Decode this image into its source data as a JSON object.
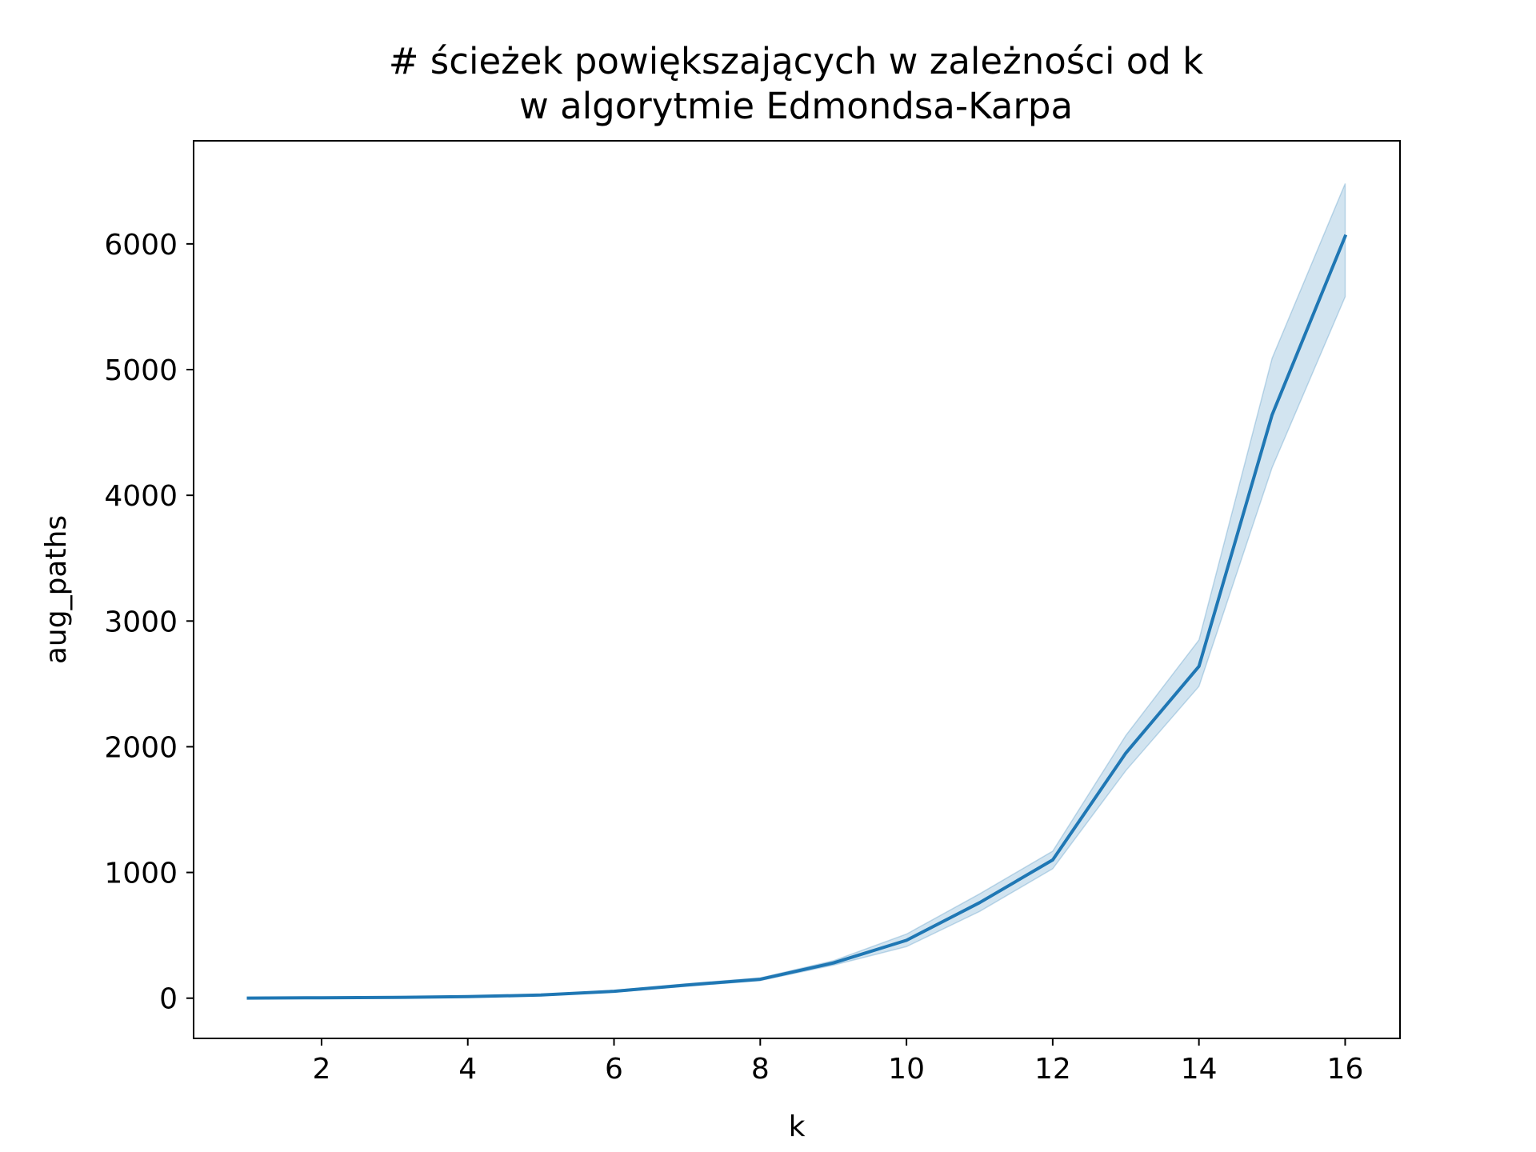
{
  "chart_data": {
    "type": "line",
    "title_lines": [
      "# ścieżek powiększających w zależności od k",
      "w algorytmie Edmondsa-Karpa"
    ],
    "xlabel": "k",
    "ylabel": "aug_paths",
    "xlim": [
      0.25,
      16.75
    ],
    "ylim": [
      -320,
      6820
    ],
    "x_ticks": [
      2,
      4,
      6,
      8,
      10,
      12,
      14,
      16
    ],
    "y_ticks": [
      0,
      1000,
      2000,
      3000,
      4000,
      5000,
      6000
    ],
    "grid": false,
    "legend": "none",
    "series": [
      {
        "color": "#1f77b4",
        "band_color": "#1f77b4",
        "band_opacity": 0.2,
        "x": [
          1,
          2,
          3,
          4,
          5,
          6,
          7,
          8,
          9,
          10,
          11,
          12,
          13,
          14,
          15,
          16
        ],
        "y": [
          1,
          3,
          6,
          12,
          25,
          55,
          105,
          150,
          280,
          460,
          760,
          1100,
          1950,
          2640,
          4640,
          6060
        ],
        "ci_low": [
          1,
          2,
          5,
          10,
          21,
          48,
          95,
          140,
          262,
          410,
          690,
          1030,
          1810,
          2480,
          4220,
          5580
        ],
        "ci_high": [
          1,
          4,
          7,
          14,
          29,
          62,
          115,
          162,
          298,
          510,
          830,
          1170,
          2090,
          2850,
          5090,
          6480
        ]
      }
    ]
  }
}
